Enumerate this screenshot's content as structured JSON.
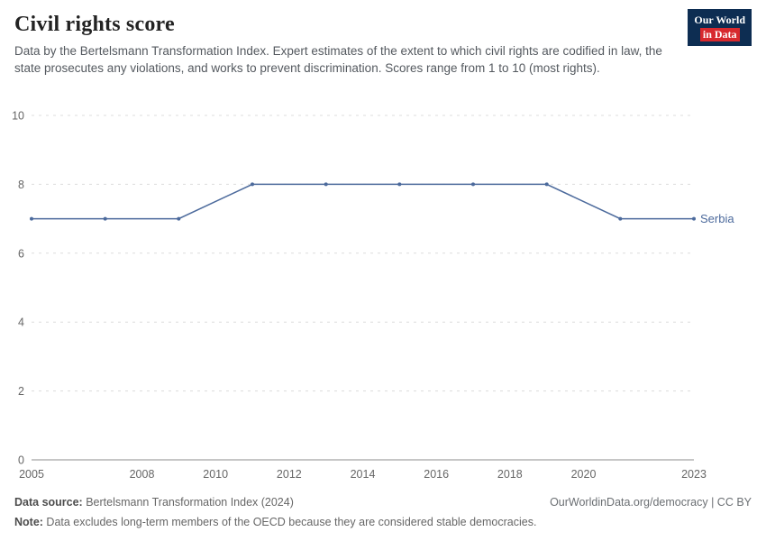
{
  "header": {
    "title": "Civil rights score",
    "subtitle": "Data by the Bertelsmann Transformation Index. Expert estimates of the extent to which civil rights are codified in law, the state prosecutes any violations, and works to prevent discrimination. Scores range from 1 to 10 (most rights).",
    "logo": {
      "line1": "Our World",
      "line2": "in Data",
      "bg_color": "#0d2d52",
      "accent_color": "#d7292e"
    }
  },
  "chart_data": {
    "type": "line",
    "title": "Civil rights score",
    "x": [
      2005,
      2007,
      2009,
      2011,
      2013,
      2015,
      2017,
      2019,
      2021,
      2023
    ],
    "series": [
      {
        "name": "Serbia",
        "color": "#4c6a9c",
        "values": [
          7,
          7,
          7,
          8,
          8,
          8,
          8,
          8,
          7,
          7
        ]
      }
    ],
    "xlim": [
      2005,
      2023
    ],
    "ylim": [
      0,
      10
    ],
    "xticks": [
      2005,
      2008,
      2010,
      2012,
      2014,
      2016,
      2018,
      2020,
      2023
    ],
    "yticks": [
      0,
      2,
      4,
      6,
      8,
      10
    ],
    "grid": true,
    "legend_position": "end-of-line"
  },
  "footer": {
    "source_label": "Data source:",
    "source_text": " Bertelsmann Transformation Index (2024)",
    "right_text": "OurWorldinData.org/democracy | CC BY",
    "note_label": "Note:",
    "note_text": " Data excludes long-term members of the OECD because they are considered stable democracies."
  }
}
